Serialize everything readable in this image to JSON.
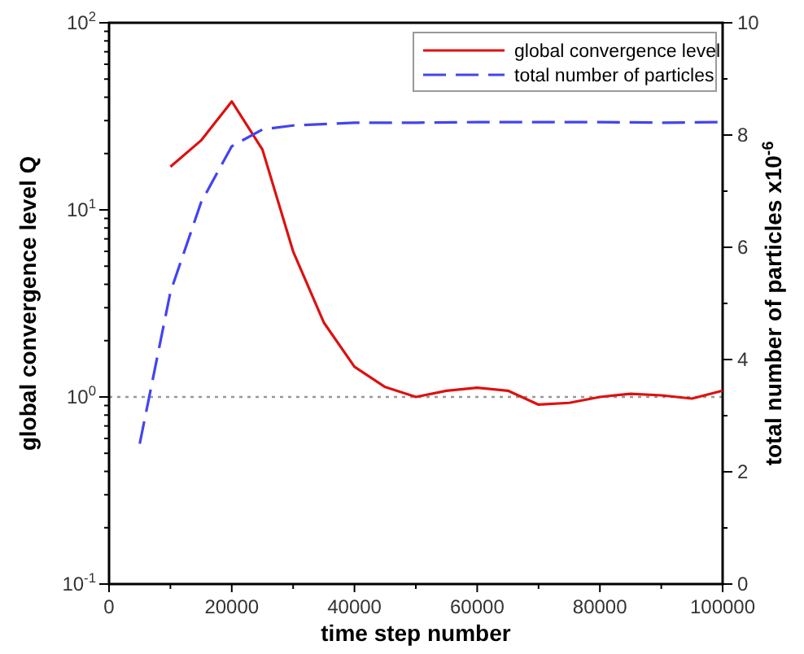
{
  "chart_data": {
    "type": "line",
    "xlabel": "time step number",
    "ylabel": "global convergence level  Q",
    "y2label": "total number of particles x10$^{-6}$",
    "log": "y",
    "legend": "top right",
    "grid": false,
    "xlim": [
      0,
      100000
    ],
    "xticks": [
      0,
      {
        "value": 10000,
        "label": null
      },
      20000,
      {
        "value": 30000,
        "label": null
      },
      40000,
      {
        "value": 50000,
        "label": null
      },
      60000,
      {
        "value": 70000,
        "label": null
      },
      80000,
      {
        "value": 90000,
        "label": null
      },
      100000
    ],
    "ylim": [
      0.1,
      100
    ],
    "yticks": [
      {
        "value": 0.1,
        "label": "10$^{-1}$"
      },
      {
        "value": 0.2,
        "label": null
      },
      {
        "value": 0.3,
        "label": null
      },
      {
        "value": 0.4,
        "label": null
      },
      {
        "value": 0.5,
        "label": null
      },
      {
        "value": 0.6,
        "label": null
      },
      {
        "value": 0.7,
        "label": null
      },
      {
        "value": 0.8,
        "label": null
      },
      {
        "value": 0.9,
        "label": null
      },
      {
        "value": 1,
        "label": "10$^{0}$"
      },
      {
        "value": 2,
        "label": null
      },
      {
        "value": 3,
        "label": null
      },
      {
        "value": 4,
        "label": null
      },
      {
        "value": 5,
        "label": null
      },
      {
        "value": 6,
        "label": null
      },
      {
        "value": 7,
        "label": null
      },
      {
        "value": 8,
        "label": null
      },
      {
        "value": 9,
        "label": null
      },
      {
        "value": 10,
        "label": "10$^{1}$"
      },
      {
        "value": 20,
        "label": null
      },
      {
        "value": 30,
        "label": null
      },
      {
        "value": 40,
        "label": null
      },
      {
        "value": 50,
        "label": null
      },
      {
        "value": 60,
        "label": null
      },
      {
        "value": 70,
        "label": null
      },
      {
        "value": 80,
        "label": null
      },
      {
        "value": 90,
        "label": null
      },
      {
        "value": 100,
        "label": "10$^{2}$"
      }
    ],
    "y2lim": [
      0,
      10
    ],
    "y2ticks": [
      0,
      {
        "value": 1,
        "label": null
      },
      2,
      {
        "value": 3,
        "label": null
      },
      4,
      {
        "value": 5,
        "label": null
      },
      6,
      {
        "value": 7,
        "label": null
      },
      8,
      {
        "value": 9,
        "label": null
      },
      10
    ],
    "ref_lines": [
      {
        "axis": "y",
        "value": 1,
        "color": "#999999",
        "line_style": "dotted"
      }
    ],
    "series": [
      {
        "name": "global convergence level",
        "color": "#dd1111",
        "line_style": "solid",
        "x": [
          10000,
          15000,
          20000,
          25000,
          30000,
          35000,
          40000,
          45000,
          50000,
          55000,
          60000,
          65000,
          70000,
          75000,
          80000,
          85000,
          90000,
          95000,
          100000
        ],
        "values": [
          17,
          23.5,
          38,
          21,
          6,
          2.5,
          1.45,
          1.13,
          1.0,
          1.08,
          1.12,
          1.08,
          0.91,
          0.93,
          1.0,
          1.04,
          1.02,
          0.98,
          1.08
        ]
      },
      {
        "name": "total number of particles",
        "color": "#4444ee",
        "line_style": "dashed",
        "axis": "y2",
        "x": [
          5000,
          10000,
          15000,
          20000,
          25000,
          30000,
          40000,
          50000,
          60000,
          70000,
          80000,
          90000,
          100000
        ],
        "values": [
          2.5,
          5.2,
          6.8,
          7.8,
          8.1,
          8.17,
          8.22,
          8.22,
          8.23,
          8.23,
          8.23,
          8.22,
          8.23
        ]
      }
    ]
  }
}
